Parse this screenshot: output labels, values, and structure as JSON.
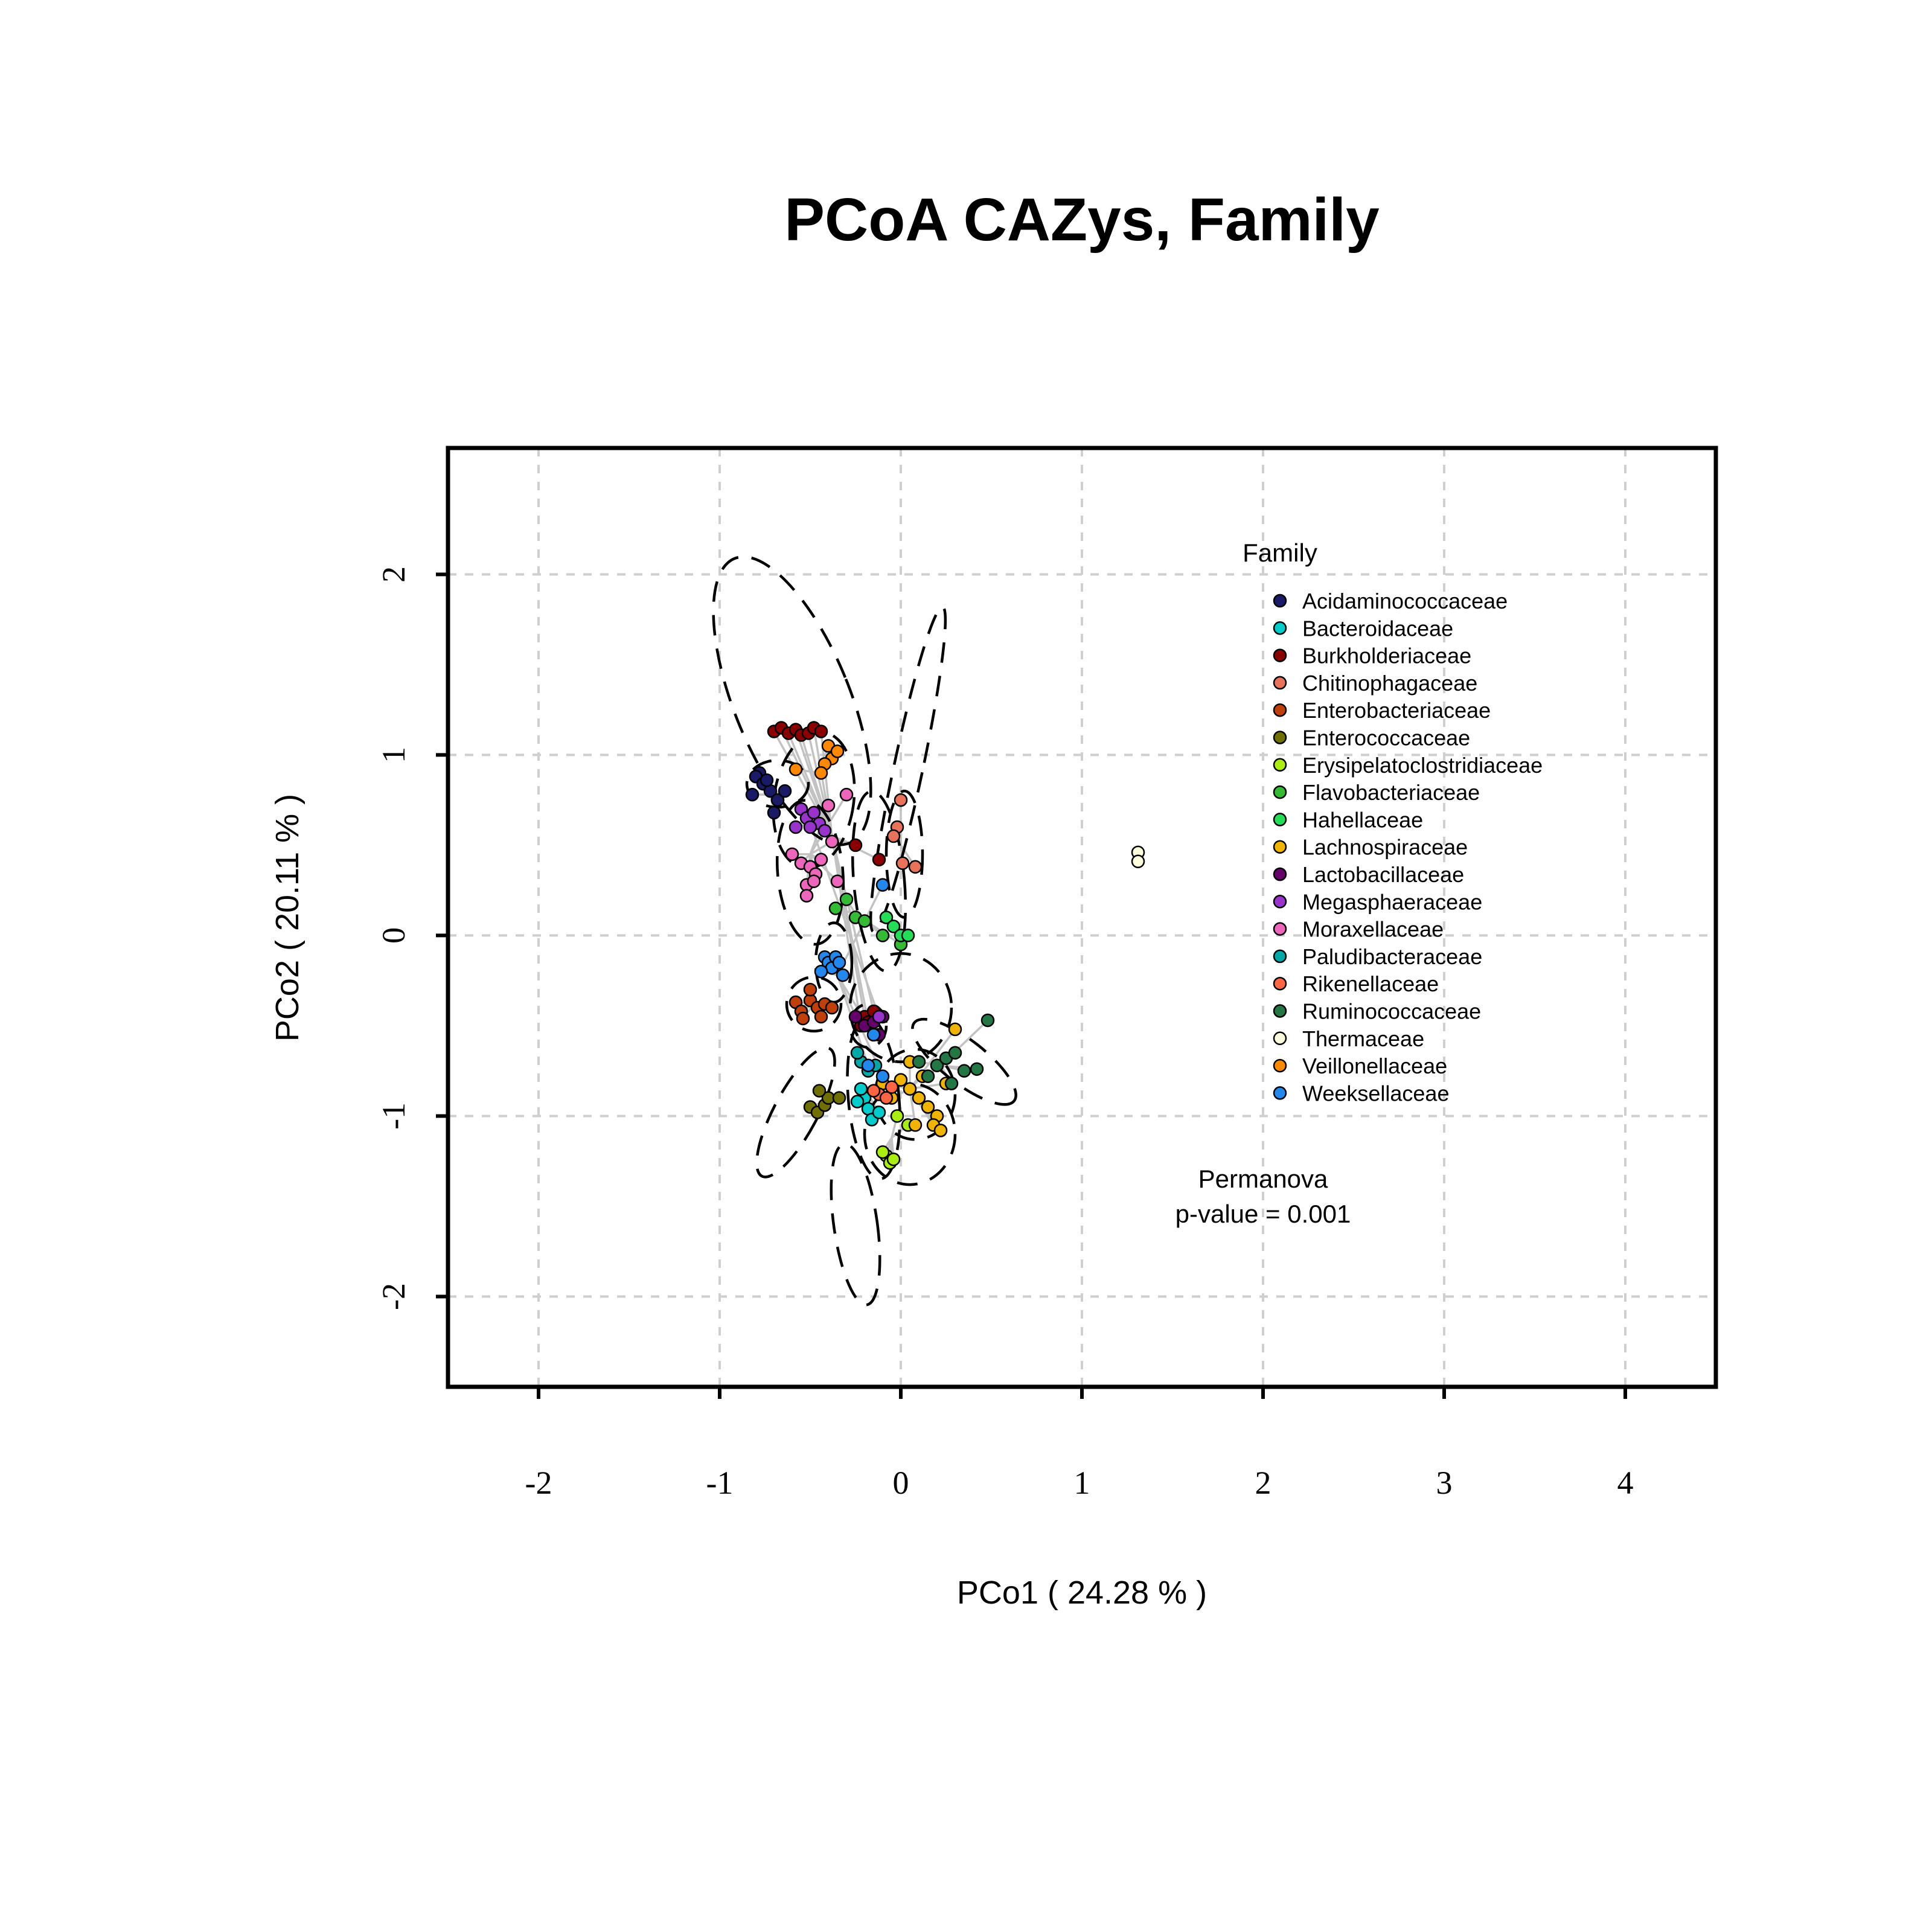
{
  "chart_data": {
    "type": "scatter",
    "title": "PCoA CAZys, Family",
    "xlabel": "PCo1 ( 24.28 % )",
    "ylabel": "PCo2 ( 20.11 % )",
    "xlim": [
      -2.5,
      4.5
    ],
    "ylim": [
      -2.5,
      2.7
    ],
    "x_ticks": [
      "-2",
      "-1",
      "0",
      "1",
      "2",
      "3",
      "4"
    ],
    "x_tick_values": [
      -2,
      -1,
      0,
      1,
      2,
      3,
      4
    ],
    "y_ticks": [
      "2",
      "1",
      "0",
      "-1",
      "-2"
    ],
    "y_tick_values": [
      2,
      1,
      0,
      -1,
      -2
    ],
    "grid": true,
    "legend": {
      "title": "Family",
      "position": "top-right"
    },
    "annotation": {
      "line1": "Permanova",
      "line2": "p-value = 0.001"
    },
    "series": [
      {
        "name": "Acidaminococcaceae",
        "color": "#1a1a66",
        "centroid": [
          -0.72,
          0.78
        ],
        "points": [
          [
            -0.78,
            0.9
          ],
          [
            -0.8,
            0.88
          ],
          [
            -0.76,
            0.84
          ],
          [
            -0.72,
            0.8
          ],
          [
            -0.68,
            0.75
          ],
          [
            -0.82,
            0.78
          ],
          [
            -0.74,
            0.86
          ],
          [
            -0.64,
            0.8
          ],
          [
            -0.7,
            0.68
          ]
        ]
      },
      {
        "name": "Bacteroidaceae",
        "color": "#00cccc",
        "centroid": [
          -0.2,
          -0.85
        ],
        "points": [
          [
            -0.2,
            -0.9
          ],
          [
            -0.18,
            -0.96
          ],
          [
            -0.16,
            -1.02
          ],
          [
            -0.22,
            -0.85
          ],
          [
            -0.12,
            -0.98
          ],
          [
            -0.24,
            -0.92
          ]
        ]
      },
      {
        "name": "Burkholderiaceae",
        "color": "#8b0000",
        "centroid": [
          -0.38,
          0.55
        ],
        "points": [
          [
            -0.7,
            1.13
          ],
          [
            -0.66,
            1.15
          ],
          [
            -0.62,
            1.12
          ],
          [
            -0.58,
            1.14
          ],
          [
            -0.55,
            1.11
          ],
          [
            -0.51,
            1.12
          ],
          [
            -0.48,
            1.15
          ],
          [
            -0.44,
            1.13
          ],
          [
            -0.2,
            -0.45
          ],
          [
            -0.22,
            -0.5
          ],
          [
            -0.18,
            -0.48
          ],
          [
            -0.15,
            -0.42
          ],
          [
            -0.25,
            0.5
          ],
          [
            -0.12,
            0.42
          ]
        ]
      },
      {
        "name": "Chitinophagaceae",
        "color": "#e8735a",
        "centroid": [
          0.0,
          0.5
        ],
        "points": [
          [
            0.0,
            0.75
          ],
          [
            -0.02,
            0.6
          ],
          [
            0.01,
            0.4
          ],
          [
            0.08,
            0.38
          ],
          [
            -0.04,
            0.55
          ]
        ]
      },
      {
        "name": "Enterobacteriaceae",
        "color": "#c0400a",
        "centroid": [
          -0.48,
          -0.38
        ],
        "points": [
          [
            -0.58,
            -0.37
          ],
          [
            -0.55,
            -0.42
          ],
          [
            -0.5,
            -0.36
          ],
          [
            -0.46,
            -0.4
          ],
          [
            -0.42,
            -0.38
          ],
          [
            -0.38,
            -0.4
          ],
          [
            -0.5,
            -0.3
          ],
          [
            -0.44,
            -0.45
          ],
          [
            -0.54,
            -0.46
          ]
        ]
      },
      {
        "name": "Enterococcaceae",
        "color": "#707000",
        "centroid": [
          -0.42,
          -0.92
        ],
        "points": [
          [
            -0.5,
            -0.95
          ],
          [
            -0.46,
            -0.98
          ],
          [
            -0.42,
            -0.94
          ],
          [
            -0.4,
            -0.9
          ],
          [
            -0.45,
            -0.86
          ],
          [
            -0.34,
            -0.9
          ]
        ]
      },
      {
        "name": "Erysipelatoclostridiaceae",
        "color": "#aaee11",
        "centroid": [
          -0.05,
          -1.12
        ],
        "points": [
          [
            -0.08,
            -1.22
          ],
          [
            -0.06,
            -1.26
          ],
          [
            -0.04,
            -1.24
          ],
          [
            -0.1,
            -1.2
          ],
          [
            -0.02,
            -1.0
          ],
          [
            0.04,
            -1.05
          ]
        ]
      },
      {
        "name": "Flavobacteriaceae",
        "color": "#33bb33",
        "centroid": [
          -0.25,
          0.12
        ],
        "points": [
          [
            -0.36,
            0.15
          ],
          [
            -0.3,
            0.2
          ],
          [
            -0.25,
            0.1
          ],
          [
            -0.2,
            0.08
          ],
          [
            -0.1,
            0.0
          ],
          [
            0.0,
            -0.05
          ]
        ]
      },
      {
        "name": "Hahellaceae",
        "color": "#22dd55",
        "centroid": [
          -0.05,
          0.05
        ],
        "points": [
          [
            -0.08,
            0.1
          ],
          [
            -0.04,
            0.05
          ],
          [
            0.0,
            0.0
          ],
          [
            0.04,
            0.0
          ]
        ]
      },
      {
        "name": "Lachnospiraceae",
        "color": "#f0b400",
        "centroid": [
          0.05,
          -0.85
        ],
        "points": [
          [
            0.0,
            -0.8
          ],
          [
            0.05,
            -0.85
          ],
          [
            0.1,
            -0.9
          ],
          [
            0.15,
            -0.95
          ],
          [
            0.2,
            -1.0
          ],
          [
            0.18,
            -1.05
          ],
          [
            0.22,
            -1.08
          ],
          [
            -0.05,
            -0.9
          ],
          [
            0.12,
            -0.78
          ],
          [
            0.3,
            -0.52
          ],
          [
            0.05,
            -0.7
          ],
          [
            -0.1,
            -0.82
          ],
          [
            0.25,
            -0.82
          ],
          [
            0.08,
            -1.05
          ]
        ]
      },
      {
        "name": "Lactobacillaceae",
        "color": "#66006a",
        "centroid": [
          -0.18,
          -0.5
        ],
        "points": [
          [
            -0.25,
            -0.45
          ],
          [
            -0.2,
            -0.5
          ],
          [
            -0.15,
            -0.48
          ],
          [
            -0.12,
            -0.55
          ],
          [
            -0.1,
            -0.45
          ]
        ]
      },
      {
        "name": "Megasphaeraceae",
        "color": "#9933cc",
        "centroid": [
          -0.5,
          0.62
        ],
        "points": [
          [
            -0.55,
            0.7
          ],
          [
            -0.52,
            0.65
          ],
          [
            -0.48,
            0.68
          ],
          [
            -0.45,
            0.62
          ],
          [
            -0.5,
            0.6
          ],
          [
            -0.42,
            0.58
          ],
          [
            -0.58,
            0.6
          ],
          [
            -0.12,
            -0.45
          ]
        ]
      },
      {
        "name": "Moraxellaceae",
        "color": "#ee66bb",
        "centroid": [
          -0.5,
          0.45
        ],
        "points": [
          [
            -0.55,
            0.4
          ],
          [
            -0.5,
            0.38
          ],
          [
            -0.47,
            0.34
          ],
          [
            -0.52,
            0.28
          ],
          [
            -0.48,
            0.3
          ],
          [
            -0.44,
            0.42
          ],
          [
            -0.4,
            0.72
          ],
          [
            -0.38,
            0.52
          ],
          [
            -0.3,
            0.78
          ],
          [
            -0.6,
            0.45
          ],
          [
            -0.35,
            0.3
          ],
          [
            -0.52,
            0.22
          ]
        ]
      },
      {
        "name": "Paludibacteraceae",
        "color": "#00a8a8",
        "centroid": [
          -0.2,
          -0.72
        ],
        "points": [
          [
            -0.22,
            -0.7
          ],
          [
            -0.18,
            -0.75
          ],
          [
            -0.14,
            -0.72
          ],
          [
            -0.24,
            -0.65
          ]
        ]
      },
      {
        "name": "Rikenellaceae",
        "color": "#ff6644",
        "centroid": [
          -0.1,
          -0.88
        ],
        "points": [
          [
            -0.12,
            -0.88
          ],
          [
            -0.08,
            -0.9
          ],
          [
            -0.15,
            -0.86
          ],
          [
            -0.05,
            -0.84
          ]
        ]
      },
      {
        "name": "Ruminococcaceae",
        "color": "#227744",
        "centroid": [
          0.22,
          -0.72
        ],
        "points": [
          [
            0.15,
            -0.78
          ],
          [
            0.2,
            -0.72
          ],
          [
            0.25,
            -0.68
          ],
          [
            0.3,
            -0.65
          ],
          [
            0.35,
            -0.75
          ],
          [
            0.42,
            -0.74
          ],
          [
            0.48,
            -0.47
          ],
          [
            0.28,
            -0.82
          ],
          [
            0.1,
            -0.7
          ]
        ]
      },
      {
        "name": "Thermaceae",
        "color": "#ffffdd",
        "centroid": [
          1.3,
          0.44
        ],
        "points": [
          [
            1.31,
            0.46
          ],
          [
            1.31,
            0.41
          ]
        ]
      },
      {
        "name": "Veillonellaceae",
        "color": "#ff8800",
        "centroid": [
          -0.45,
          0.9
        ],
        "points": [
          [
            -0.4,
            1.05
          ],
          [
            -0.38,
            0.98
          ],
          [
            -0.42,
            0.95
          ],
          [
            -0.58,
            0.92
          ],
          [
            -0.44,
            0.9
          ],
          [
            -0.35,
            1.02
          ]
        ]
      },
      {
        "name": "Weeksellaceae",
        "color": "#2288ee",
        "centroid": [
          -0.35,
          -0.22
        ],
        "points": [
          [
            -0.42,
            -0.12
          ],
          [
            -0.4,
            -0.15
          ],
          [
            -0.38,
            -0.18
          ],
          [
            -0.36,
            -0.12
          ],
          [
            -0.34,
            -0.15
          ],
          [
            -0.44,
            -0.2
          ],
          [
            -0.32,
            -0.22
          ],
          [
            -0.1,
            0.28
          ],
          [
            -0.15,
            -0.55
          ],
          [
            -0.18,
            -0.72
          ],
          [
            -0.1,
            -0.78
          ]
        ]
      }
    ],
    "ellipses": [
      {
        "cx": -0.6,
        "cy": 1.3,
        "rx": 0.32,
        "ry": 0.85,
        "angle": 22
      },
      {
        "cx": 0.04,
        "cy": 0.92,
        "rx": 0.08,
        "ry": 0.92,
        "angle": -12
      },
      {
        "cx": -0.68,
        "cy": 0.84,
        "rx": 0.17,
        "ry": 0.13,
        "angle": 0
      },
      {
        "cx": -0.48,
        "cy": 0.75,
        "rx": 0.22,
        "ry": 0.38,
        "angle": -8
      },
      {
        "cx": -0.5,
        "cy": 0.35,
        "rx": 0.18,
        "ry": 0.4,
        "angle": 5
      },
      {
        "cx": -0.12,
        "cy": 0.3,
        "rx": 0.14,
        "ry": 0.5,
        "angle": 5
      },
      {
        "cx": 0.02,
        "cy": 0.45,
        "rx": 0.1,
        "ry": 0.35,
        "angle": 0
      },
      {
        "cx": -0.37,
        "cy": -0.15,
        "rx": 0.1,
        "ry": 0.22,
        "angle": 0
      },
      {
        "cx": -0.48,
        "cy": -0.38,
        "rx": 0.15,
        "ry": 0.15,
        "angle": 0
      },
      {
        "cx": -0.18,
        "cy": -0.5,
        "rx": 0.1,
        "ry": 0.12,
        "angle": 0
      },
      {
        "cx": -0.58,
        "cy": -0.98,
        "rx": 0.12,
        "ry": 0.4,
        "angle": -28
      },
      {
        "cx": -0.25,
        "cy": -1.6,
        "rx": 0.12,
        "ry": 0.45,
        "angle": 8
      },
      {
        "cx": -0.15,
        "cy": -0.9,
        "rx": 0.14,
        "ry": 0.45,
        "angle": 5
      },
      {
        "cx": 0.35,
        "cy": -0.7,
        "rx": 0.35,
        "ry": 0.12,
        "angle": -38
      },
      {
        "cx": 0.08,
        "cy": -0.88,
        "rx": 0.22,
        "ry": 0.25,
        "angle": 0
      },
      {
        "cx": 0.05,
        "cy": -1.1,
        "rx": 0.25,
        "ry": 0.28,
        "angle": 0
      },
      {
        "cx": 0.0,
        "cy": -0.4,
        "rx": 0.28,
        "ry": 0.3,
        "angle": 0
      }
    ]
  }
}
